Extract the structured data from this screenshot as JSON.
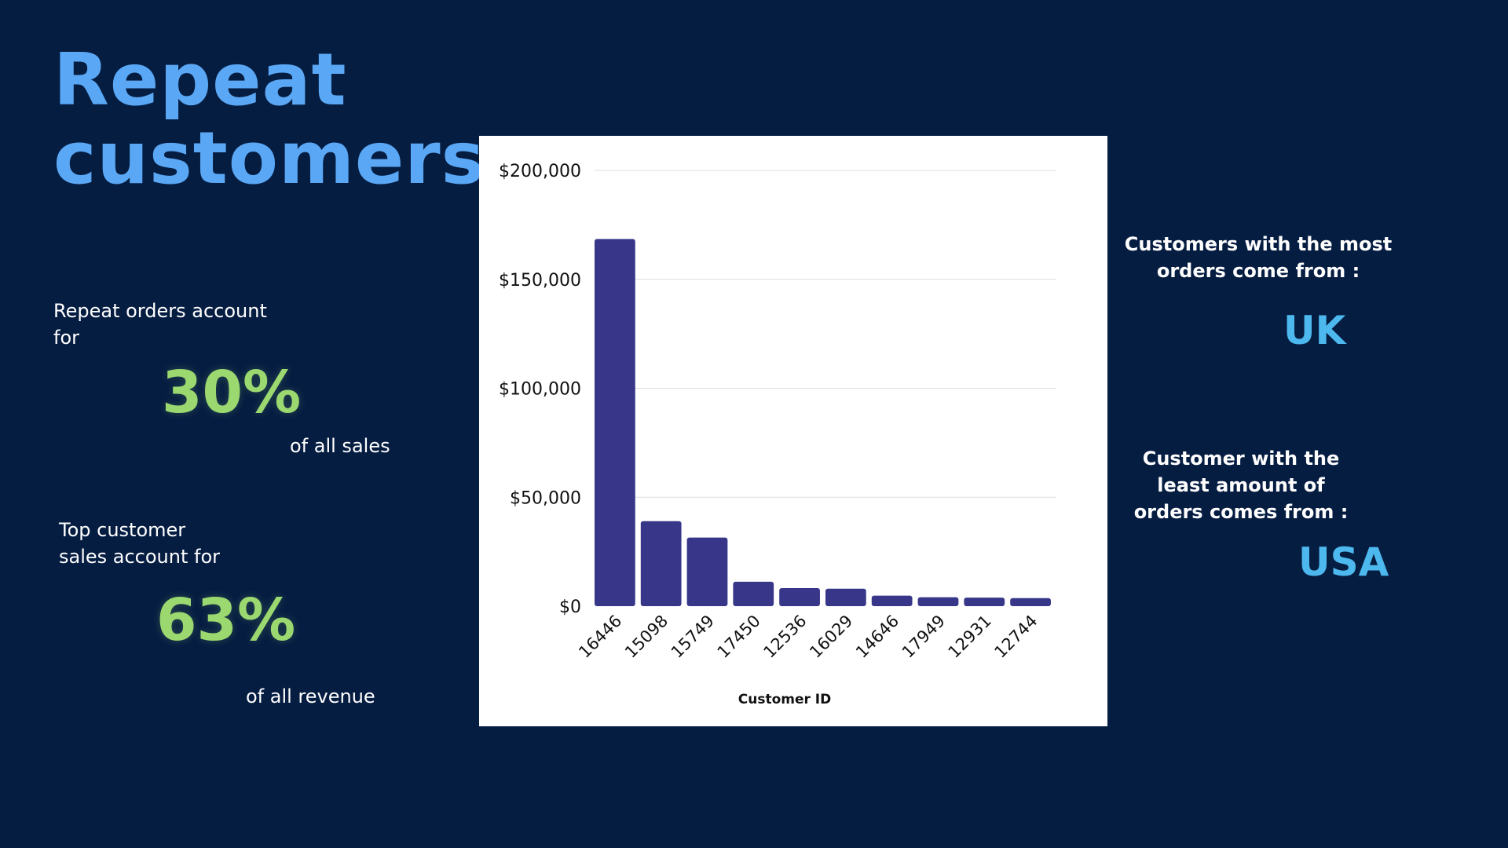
{
  "title": {
    "line1": "Repeat",
    "line2": "customers"
  },
  "left_stats": {
    "repeat_orders": {
      "intro_line1": "Repeat orders account",
      "intro_line2": "for",
      "value": "30%",
      "suffix": "of all sales"
    },
    "top_customer": {
      "intro_line1": "Top customer",
      "intro_line2": "sales account for",
      "value": "63%",
      "suffix": "of all revenue"
    }
  },
  "right_stats": {
    "most_orders": {
      "line1": "Customers with the most",
      "line2": "orders come from :",
      "country": "UK"
    },
    "least_orders": {
      "line1": "Customer with the",
      "line2": "least amount of",
      "line3": "orders comes from :",
      "country": "USA"
    }
  },
  "colors": {
    "background": "#061d42",
    "title": "#5aa8f5",
    "percent": "#9bd86f",
    "country": "#4db8ee",
    "bar": "#373689",
    "gridline": "#dddddd"
  },
  "chart_data": {
    "type": "bar",
    "xlabel": "Customer ID",
    "ylabel": "",
    "categories": [
      "16446",
      "15098",
      "15749",
      "17450",
      "12536",
      "16029",
      "14646",
      "17949",
      "12931",
      "12744"
    ],
    "values": [
      168500,
      39000,
      31500,
      11200,
      8300,
      8000,
      4800,
      4100,
      3900,
      3700
    ],
    "ylim": [
      0,
      200000
    ],
    "y_ticks": [
      0,
      50000,
      100000,
      150000,
      200000
    ],
    "y_tick_labels": [
      "$0",
      "$50,000",
      "$100,000",
      "$150,000",
      "$200,000"
    ],
    "grid": true,
    "legend": "none"
  }
}
